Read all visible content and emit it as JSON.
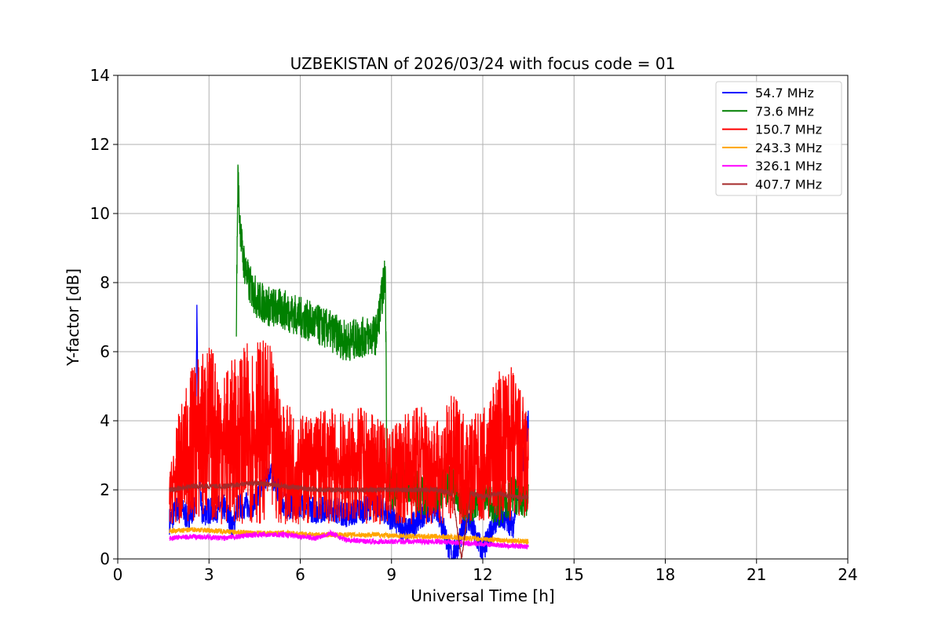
{
  "chart_data": {
    "type": "line",
    "title": "UZBEKISTAN of 2026/03/24 with focus code = 01",
    "xlabel": "Universal Time [h]",
    "ylabel": "Y-factor [dB]",
    "xlim": [
      0,
      24
    ],
    "ylim": [
      0,
      14
    ],
    "xticks": [
      0,
      3,
      6,
      9,
      12,
      15,
      18,
      21,
      24
    ],
    "yticks": [
      0,
      2,
      4,
      6,
      8,
      10,
      12,
      14
    ],
    "grid": true,
    "legend_position": "top-right",
    "series": [
      {
        "name": "  54.7 MHz",
        "color": "#0000ff",
        "x": [
          1.7,
          2.0,
          2.3,
          2.55,
          2.6,
          2.65,
          2.75,
          3.0,
          3.5,
          3.8,
          3.9,
          4.5,
          5.0,
          5.5,
          6.0,
          6.5,
          7.0,
          7.5,
          8.0,
          8.5,
          9.0,
          9.5,
          10.0,
          10.5,
          11.0,
          11.5,
          12.0,
          12.5,
          13.0,
          13.5
        ],
        "y": [
          1.1,
          1.5,
          1.2,
          1.6,
          7.05,
          3.3,
          1.3,
          1.4,
          1.5,
          0.9,
          1.5,
          1.6,
          2.6,
          1.5,
          1.6,
          1.4,
          1.5,
          1.3,
          1.4,
          1.6,
          1.2,
          0.8,
          1.3,
          1.5,
          0.0,
          1.2,
          0.2,
          1.3,
          1.0,
          4.0
        ]
      },
      {
        "name": "  73.6 MHz",
        "color": "#008000",
        "x": [
          3.9,
          3.95,
          4.0,
          4.1,
          4.3,
          4.6,
          5.0,
          5.5,
          6.0,
          6.5,
          7.0,
          7.5,
          8.0,
          8.5,
          8.8,
          8.85,
          9.0,
          9.5,
          10.0,
          10.5,
          11.0,
          11.5,
          12.0,
          12.5,
          13.0,
          13.5
        ],
        "y": [
          7.0,
          11.1,
          10.0,
          8.8,
          8.0,
          7.5,
          7.3,
          7.2,
          7.0,
          6.8,
          6.6,
          6.3,
          6.4,
          6.5,
          8.3,
          2.5,
          2.0,
          2.3,
          1.8,
          2.0,
          2.2,
          1.5,
          2.0,
          1.5,
          1.9,
          1.7
        ]
      },
      {
        "name": "  150.7 MHz",
        "color": "#ff0000",
        "x": [
          1.7,
          2.0,
          2.5,
          3.0,
          3.5,
          4.0,
          4.5,
          5.0,
          5.5,
          6.0,
          6.5,
          7.0,
          7.5,
          8.0,
          8.5,
          9.0,
          9.5,
          10.0,
          10.5,
          11.0,
          11.5,
          12.0,
          12.5,
          13.0,
          13.5
        ],
        "y": [
          2.5,
          4.2,
          5.8,
          6.3,
          5.5,
          6.0,
          6.5,
          6.2,
          4.5,
          4.2,
          4.3,
          4.4,
          4.2,
          4.4,
          4.1,
          3.8,
          4.3,
          4.6,
          4.0,
          4.8,
          4.2,
          4.3,
          5.5,
          5.6,
          4.3
        ]
      },
      {
        "name": "  243.3 MHz",
        "color": "#ffa500",
        "x": [
          1.7,
          2.5,
          3.5,
          4.5,
          5.5,
          6.5,
          7.5,
          8.5,
          9.5,
          10.5,
          11.5,
          12.5,
          13.5
        ],
        "y": [
          0.8,
          0.85,
          0.8,
          0.75,
          0.75,
          0.7,
          0.7,
          0.7,
          0.65,
          0.65,
          0.6,
          0.55,
          0.5
        ]
      },
      {
        "name": "  326.1 MHz",
        "color": "#ff00ff",
        "x": [
          1.7,
          2.5,
          3.5,
          4.5,
          5.5,
          6.5,
          7.0,
          7.5,
          8.5,
          9.5,
          10.5,
          11.5,
          12.5,
          13.5
        ],
        "y": [
          0.6,
          0.65,
          0.6,
          0.7,
          0.7,
          0.6,
          0.75,
          0.55,
          0.5,
          0.5,
          0.5,
          0.45,
          0.4,
          0.35
        ]
      },
      {
        "name": "  407.7 MHz",
        "color": "#a52a2a",
        "x": [
          1.7,
          2.5,
          3.5,
          4.5,
          5.5,
          6.5,
          7.5,
          8.5,
          9.5,
          10.5,
          11.0,
          11.3,
          11.6,
          12.0,
          12.5,
          13.0,
          13.5
        ],
        "y": [
          2.0,
          2.1,
          2.1,
          2.2,
          2.1,
          2.0,
          2.0,
          2.0,
          2.0,
          2.0,
          1.9,
          0.0,
          1.9,
          1.8,
          1.9,
          1.8,
          1.8
        ]
      }
    ]
  }
}
